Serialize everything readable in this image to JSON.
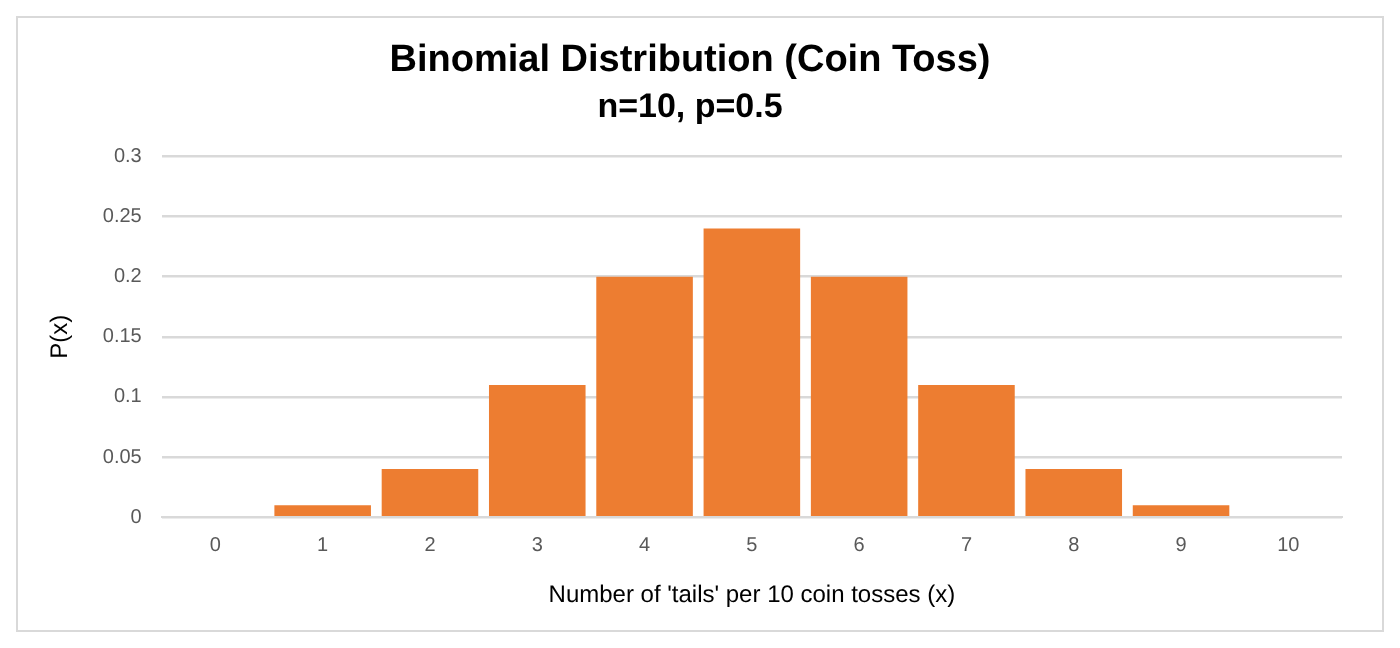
{
  "chart_data": {
    "type": "bar",
    "title": "Binomial Distribution (Coin Toss)",
    "subtitle": "n=10, p=0.5",
    "xlabel": "Number of 'tails' per 10 coin tosses (x)",
    "ylabel": "P(x)",
    "categories": [
      "0",
      "1",
      "2",
      "3",
      "4",
      "5",
      "6",
      "7",
      "8",
      "9",
      "10"
    ],
    "values": [
      0,
      0.01,
      0.04,
      0.11,
      0.2,
      0.24,
      0.2,
      0.11,
      0.04,
      0.01,
      0
    ],
    "color": "#ed7d31",
    "ylim": [
      0,
      0.3
    ],
    "yticks": [
      0,
      0.05,
      0.1,
      0.15,
      0.2,
      0.25,
      0.3
    ],
    "grid": "y",
    "legend": false
  }
}
